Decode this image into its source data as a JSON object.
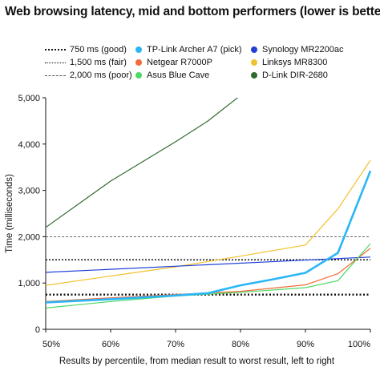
{
  "chart_data": {
    "type": "line",
    "title": "Web browsing latency, mid and bottom performers (lower is better)",
    "xlabel": "Results by percentile, from median result to worst result, left to right",
    "ylabel": "Time (milliseconds)",
    "xlim": [
      50,
      100
    ],
    "ylim": [
      0,
      5000
    ],
    "x_ticks": [
      50,
      60,
      70,
      80,
      90,
      100
    ],
    "x_tick_labels": [
      "50%",
      "60%",
      "70%",
      "80%",
      "90%",
      "100%"
    ],
    "y_ticks": [
      0,
      1000,
      2000,
      3000,
      4000,
      5000
    ],
    "y_tick_labels": [
      "0",
      "1,000",
      "2,000",
      "3,000",
      "4,000",
      "5,000"
    ],
    "grid": false,
    "legend_position": "top",
    "reference_lines": [
      {
        "name": "750 ms (good)",
        "value": 750,
        "style": "dotted-bold",
        "color": "#111111"
      },
      {
        "name": "1,500 ms (fair)",
        "value": 1500,
        "style": "dotted",
        "color": "#111111"
      },
      {
        "name": "2,000 ms (poor)",
        "value": 2000,
        "style": "dashed-thin",
        "color": "#555555"
      }
    ],
    "series": [
      {
        "name": "TP-Link Archer A7 (pick)",
        "color": "#29b6f6",
        "width": 2.6,
        "x": [
          50,
          60,
          70,
          75,
          80,
          85,
          90,
          95,
          100
        ],
        "y": [
          580,
          650,
          730,
          780,
          950,
          1080,
          1220,
          1650,
          3420
        ]
      },
      {
        "name": "Netgear R7000P",
        "color": "#f26b3a",
        "width": 1.2,
        "x": [
          50,
          60,
          70,
          80,
          90,
          95,
          100
        ],
        "y": [
          600,
          680,
          750,
          820,
          960,
          1200,
          1750
        ]
      },
      {
        "name": "Asus Blue Cave",
        "color": "#4cd964",
        "width": 1.2,
        "x": [
          50,
          60,
          70,
          80,
          90,
          95,
          100
        ],
        "y": [
          460,
          600,
          720,
          800,
          900,
          1050,
          1850
        ]
      },
      {
        "name": "Synology MR2200ac",
        "color": "#1f3fd6",
        "width": 1.2,
        "x": [
          50,
          100
        ],
        "y": [
          1230,
          1560
        ]
      },
      {
        "name": "Linksys MR8300",
        "color": "#f2c12e",
        "width": 1.2,
        "x": [
          50,
          60,
          70,
          80,
          90,
          95,
          100
        ],
        "y": [
          950,
          1150,
          1350,
          1580,
          1820,
          2600,
          3650
        ]
      },
      {
        "name": "D-Link DIR-2680",
        "color": "#2e6b2e",
        "width": 1.2,
        "x": [
          50,
          60,
          70,
          75,
          80
        ],
        "y": [
          2200,
          3200,
          4050,
          4500,
          5050
        ]
      }
    ]
  }
}
